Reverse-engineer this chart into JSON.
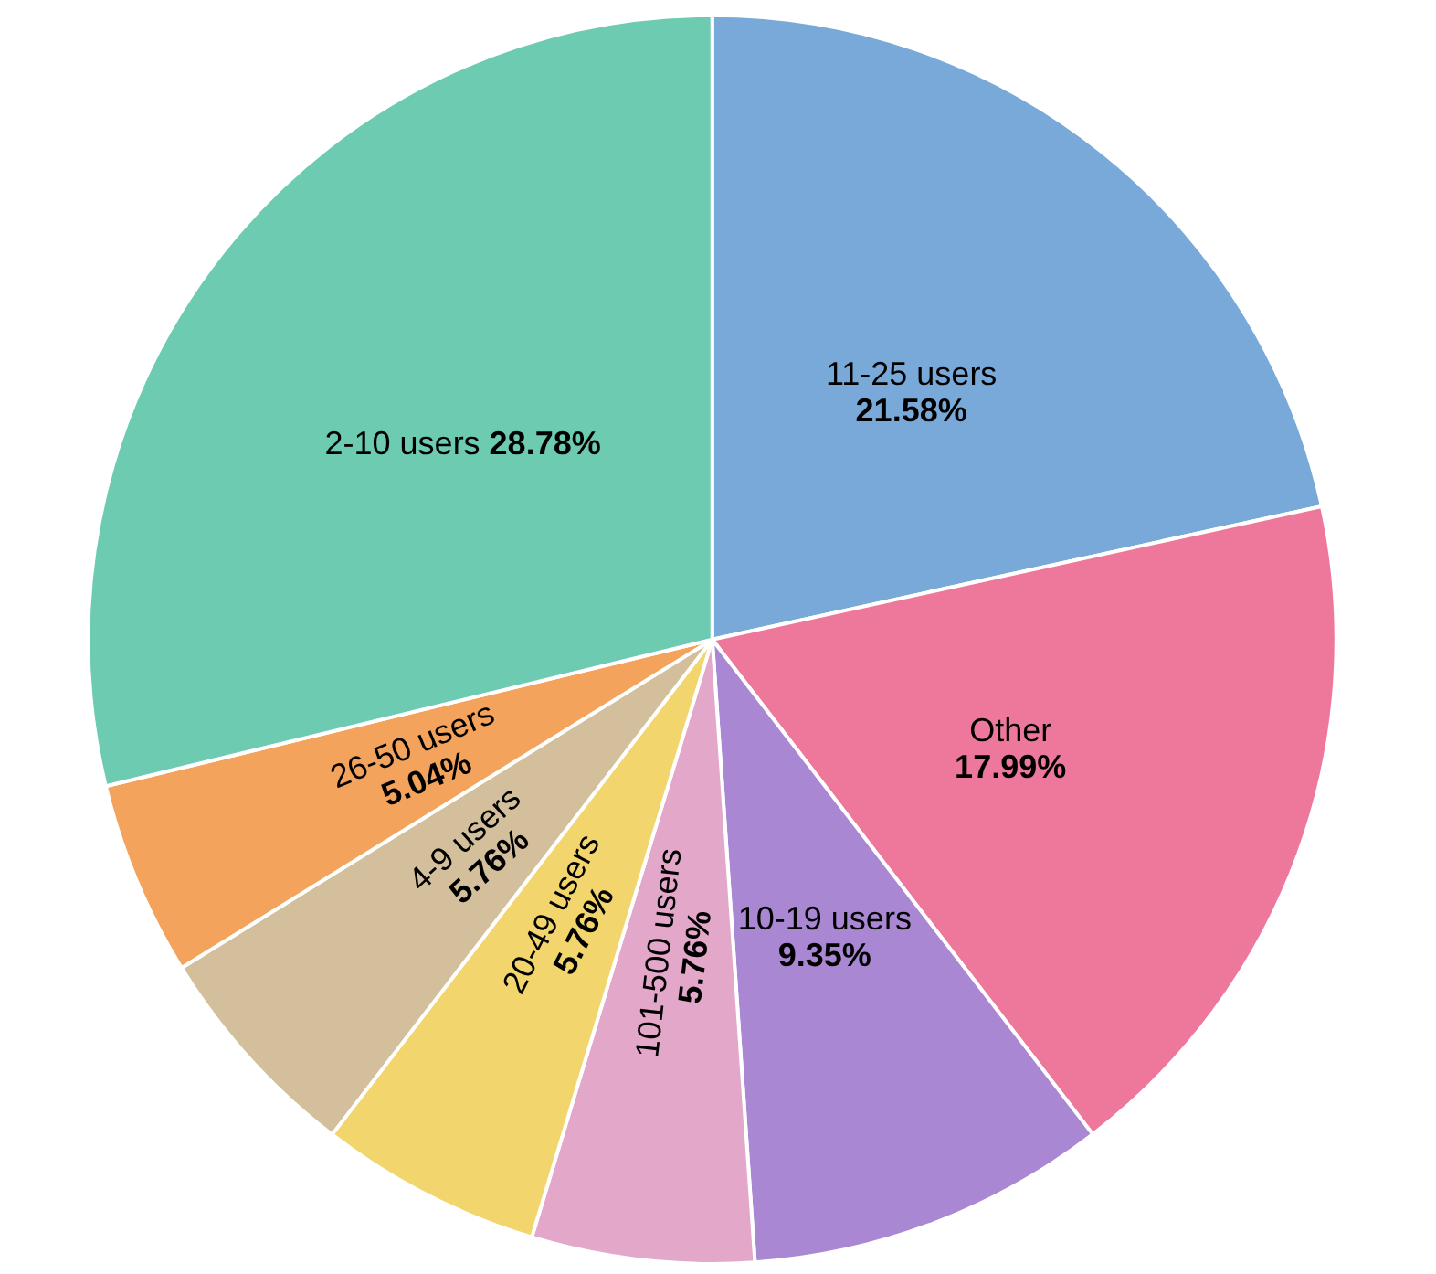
{
  "chart_data": {
    "type": "pie",
    "categories": [
      "11-25 users",
      "Other",
      "10-19 users",
      "101-500 users",
      "20-49 users",
      "4-9 users",
      "26-50 users",
      "2-10 users"
    ],
    "values": [
      21.58,
      17.99,
      9.35,
      5.76,
      5.76,
      5.76,
      5.04,
      28.78
    ],
    "value_labels": [
      "21.58%",
      "17.99%",
      "9.35%",
      "5.76%",
      "5.76%",
      "5.76%",
      "5.04%",
      "28.78%"
    ],
    "colors": [
      "#79a9d9",
      "#ee789c",
      "#a987d3",
      "#e3a7c9",
      "#f2d66d",
      "#d3bf9b",
      "#f3a35c",
      "#6dcbb2"
    ],
    "legend": false
  }
}
